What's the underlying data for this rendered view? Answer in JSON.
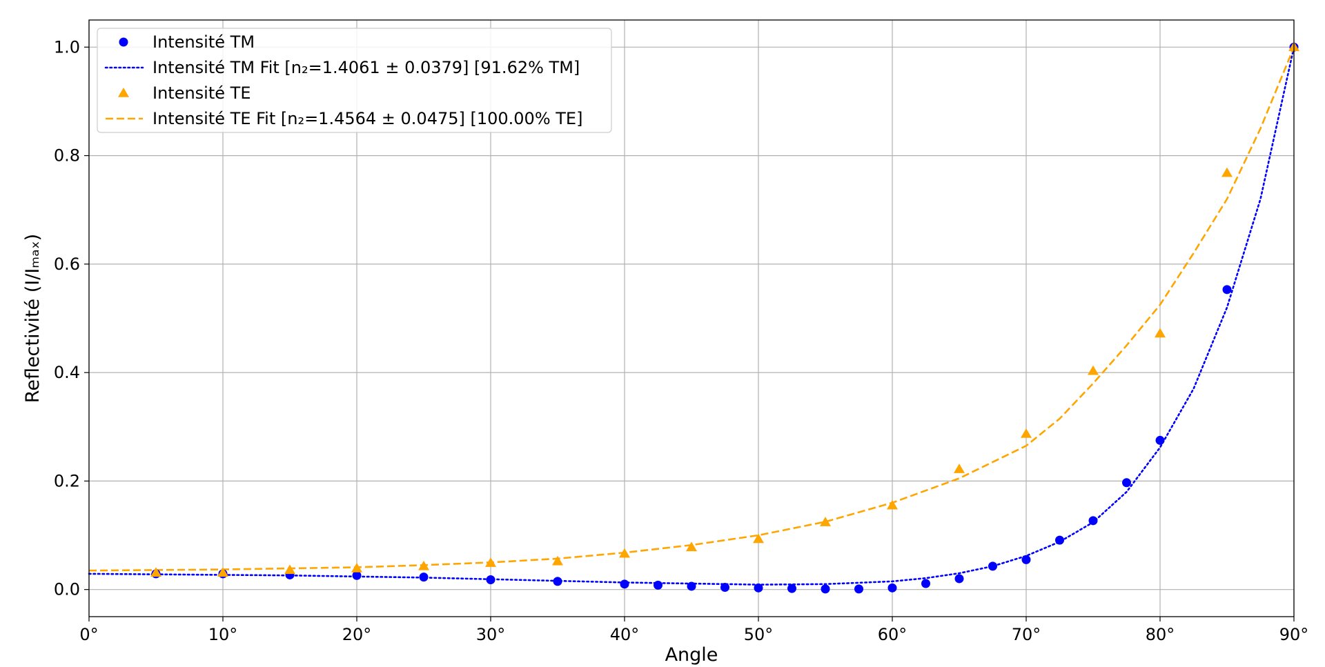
{
  "chart_data": {
    "type": "scatter",
    "xlabel": "Angle",
    "ylabel": "Reflectivité (I/Iₘₐₓ)",
    "xlim": [
      0,
      90
    ],
    "ylim": [
      -0.05,
      1.05
    ],
    "x_ticks": [
      0,
      10,
      20,
      30,
      40,
      50,
      60,
      70,
      80,
      90
    ],
    "x_tick_labels": [
      "0°",
      "10°",
      "20°",
      "30°",
      "40°",
      "50°",
      "60°",
      "70°",
      "80°",
      "90°"
    ],
    "y_ticks": [
      0.0,
      0.2,
      0.4,
      0.6,
      0.8,
      1.0
    ],
    "y_tick_labels": [
      "0.0",
      "0.2",
      "0.4",
      "0.6",
      "0.8",
      "1.0"
    ],
    "grid": true,
    "legend_position": "top-left",
    "series": [
      {
        "name": "Intensité TM",
        "kind": "points",
        "marker": "circle",
        "color": "#0000ff",
        "x": [
          5,
          10,
          15,
          20,
          25,
          30,
          35,
          40,
          42.5,
          45,
          47.5,
          50,
          52.5,
          55,
          57.5,
          60,
          62.5,
          65,
          67.5,
          70,
          72.5,
          75,
          77.5,
          80,
          85,
          90
        ],
        "y": [
          0.029,
          0.029,
          0.027,
          0.026,
          0.023,
          0.018,
          0.015,
          0.01,
          0.008,
          0.006,
          0.004,
          0.003,
          0.002,
          0.001,
          0.001,
          0.003,
          0.011,
          0.02,
          0.043,
          0.055,
          0.091,
          0.127,
          0.197,
          0.275,
          0.553,
          1.0
        ]
      },
      {
        "name": "Intensité TM Fit [n₂=1.4061 ± 0.0379] [91.62% TM]",
        "kind": "line",
        "linestyle": "dotted",
        "color": "#0000ff",
        "x": [
          0,
          5,
          10,
          15,
          20,
          25,
          30,
          35,
          40,
          45,
          50,
          55,
          60,
          62.5,
          65,
          67.5,
          70,
          72.5,
          75,
          77.5,
          80,
          82.5,
          85,
          87.5,
          90
        ],
        "y": [
          0.029,
          0.028,
          0.027,
          0.026,
          0.024,
          0.022,
          0.019,
          0.016,
          0.013,
          0.011,
          0.009,
          0.01,
          0.015,
          0.021,
          0.03,
          0.043,
          0.062,
          0.088,
          0.124,
          0.18,
          0.262,
          0.37,
          0.52,
          0.72,
          1.0
        ]
      },
      {
        "name": "Intensité TE",
        "kind": "points",
        "marker": "triangle",
        "color": "#ffa500",
        "x": [
          5,
          10,
          15,
          20,
          25,
          30,
          35,
          40,
          45,
          50,
          55,
          60,
          65,
          70,
          75,
          80,
          85,
          90
        ],
        "y": [
          0.031,
          0.031,
          0.036,
          0.039,
          0.043,
          0.049,
          0.052,
          0.066,
          0.078,
          0.093,
          0.124,
          0.155,
          0.222,
          0.287,
          0.403,
          0.472,
          0.768,
          1.0
        ]
      },
      {
        "name": "Intensité TE Fit [n₂=1.4564 ± 0.0475] [100.00% TE]",
        "kind": "line",
        "linestyle": "dashed",
        "color": "#ffa500",
        "x": [
          0,
          5,
          10,
          15,
          20,
          25,
          30,
          35,
          40,
          45,
          50,
          55,
          60,
          65,
          70,
          72.5,
          75,
          77.5,
          80,
          82.5,
          85,
          87.5,
          90
        ],
        "y": [
          0.035,
          0.036,
          0.037,
          0.039,
          0.041,
          0.045,
          0.05,
          0.057,
          0.068,
          0.082,
          0.1,
          0.125,
          0.16,
          0.205,
          0.265,
          0.315,
          0.38,
          0.45,
          0.525,
          0.62,
          0.72,
          0.85,
          1.0
        ]
      }
    ]
  }
}
